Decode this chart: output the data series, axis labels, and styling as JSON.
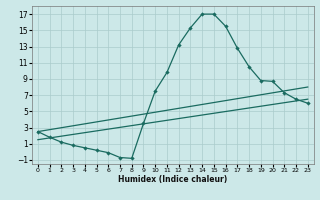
{
  "title": "",
  "xlabel": "Humidex (Indice chaleur)",
  "xlim": [
    -0.5,
    23.5
  ],
  "ylim": [
    -1.5,
    18
  ],
  "xticks": [
    0,
    1,
    2,
    3,
    4,
    5,
    6,
    7,
    8,
    9,
    10,
    11,
    12,
    13,
    14,
    15,
    16,
    17,
    18,
    19,
    20,
    21,
    22,
    23
  ],
  "yticks": [
    -1,
    1,
    3,
    5,
    7,
    9,
    11,
    13,
    15,
    17
  ],
  "bg_color": "#cce8e8",
  "grid_color": "#aacccc",
  "line_color": "#1a6b60",
  "line1_x": [
    0,
    1,
    2,
    3,
    4,
    5,
    6,
    7,
    8,
    9,
    10,
    11,
    12,
    13,
    14,
    15,
    16,
    17,
    18,
    19,
    20,
    21,
    22,
    23
  ],
  "line1_y": [
    2.5,
    1.8,
    1.2,
    0.8,
    0.5,
    0.2,
    -0.1,
    -0.7,
    -0.8,
    3.5,
    7.5,
    9.8,
    13.2,
    15.3,
    17.0,
    17.0,
    15.5,
    12.8,
    10.5,
    8.8,
    8.7,
    7.3,
    6.5,
    6.0
  ],
  "line2_x": [
    0,
    23
  ],
  "line2_y": [
    1.5,
    6.5
  ],
  "line3_x": [
    0,
    23
  ],
  "line3_y": [
    2.5,
    8.0
  ]
}
